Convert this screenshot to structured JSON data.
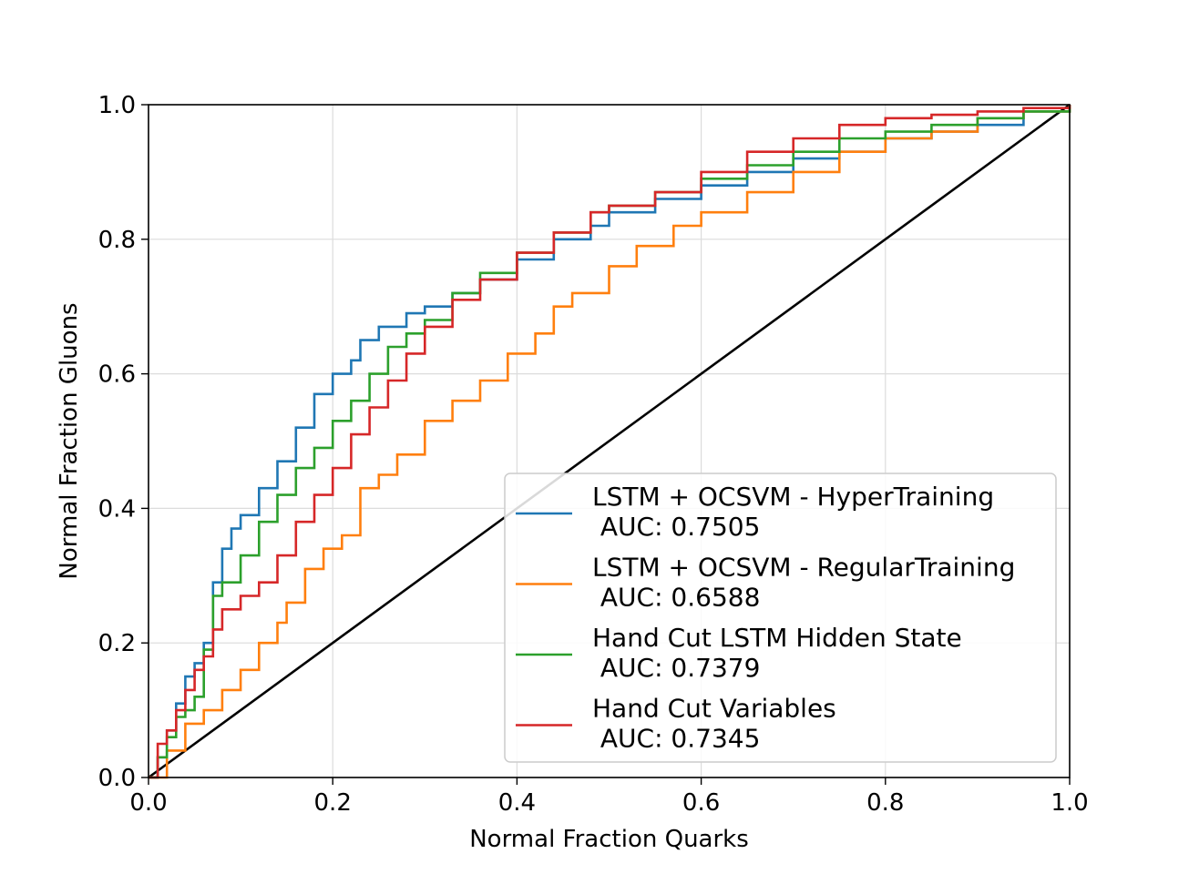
{
  "chart_data": {
    "type": "line",
    "xlabel": "Normal Fraction Quarks",
    "ylabel": "Normal Fraction Gluons",
    "xlim": [
      0.0,
      1.0
    ],
    "ylim": [
      0.0,
      1.0
    ],
    "xticks": [
      "0.0",
      "0.2",
      "0.4",
      "0.6",
      "0.8",
      "1.0"
    ],
    "yticks": [
      "0.0",
      "0.2",
      "0.4",
      "0.6",
      "0.8",
      "1.0"
    ],
    "grid": true,
    "legend_position": "lower right",
    "series": [
      {
        "name": "LSTM + OCSVM - HyperTraining",
        "auc_label": " AUC: 0.7505",
        "color": "#1f77b4",
        "x": [
          0.0,
          0.01,
          0.02,
          0.03,
          0.04,
          0.05,
          0.06,
          0.07,
          0.08,
          0.09,
          0.1,
          0.12,
          0.14,
          0.16,
          0.18,
          0.2,
          0.22,
          0.23,
          0.25,
          0.28,
          0.3,
          0.33,
          0.36,
          0.4,
          0.44,
          0.48,
          0.5,
          0.55,
          0.6,
          0.65,
          0.7,
          0.75,
          0.8,
          0.85,
          0.9,
          0.95,
          1.0
        ],
        "y": [
          0.0,
          0.03,
          0.07,
          0.11,
          0.15,
          0.17,
          0.2,
          0.29,
          0.34,
          0.37,
          0.39,
          0.43,
          0.47,
          0.52,
          0.57,
          0.6,
          0.62,
          0.65,
          0.67,
          0.69,
          0.7,
          0.72,
          0.74,
          0.77,
          0.8,
          0.82,
          0.84,
          0.86,
          0.88,
          0.9,
          0.92,
          0.93,
          0.95,
          0.96,
          0.97,
          0.99,
          1.0
        ]
      },
      {
        "name": "LSTM + OCSVM - RegularTraining",
        "auc_label": " AUC: 0.6588",
        "color": "#ff7f0e",
        "x": [
          0.0,
          0.02,
          0.04,
          0.06,
          0.08,
          0.1,
          0.12,
          0.14,
          0.15,
          0.17,
          0.19,
          0.21,
          0.23,
          0.25,
          0.27,
          0.3,
          0.33,
          0.36,
          0.39,
          0.42,
          0.44,
          0.46,
          0.5,
          0.53,
          0.57,
          0.6,
          0.65,
          0.7,
          0.75,
          0.8,
          0.85,
          0.9,
          0.95,
          1.0
        ],
        "y": [
          0.0,
          0.04,
          0.08,
          0.1,
          0.13,
          0.16,
          0.2,
          0.23,
          0.26,
          0.31,
          0.34,
          0.36,
          0.43,
          0.45,
          0.48,
          0.53,
          0.56,
          0.59,
          0.63,
          0.66,
          0.7,
          0.72,
          0.76,
          0.79,
          0.82,
          0.84,
          0.87,
          0.9,
          0.93,
          0.95,
          0.96,
          0.98,
          0.99,
          1.0
        ]
      },
      {
        "name": "Hand Cut LSTM Hidden State",
        "auc_label": " AUC: 0.7379",
        "color": "#2ca02c",
        "x": [
          0.0,
          0.01,
          0.02,
          0.03,
          0.04,
          0.05,
          0.06,
          0.07,
          0.08,
          0.1,
          0.12,
          0.14,
          0.16,
          0.18,
          0.2,
          0.22,
          0.24,
          0.26,
          0.28,
          0.3,
          0.33,
          0.36,
          0.4,
          0.44,
          0.48,
          0.5,
          0.55,
          0.6,
          0.65,
          0.7,
          0.75,
          0.8,
          0.85,
          0.9,
          0.95,
          1.0
        ],
        "y": [
          0.0,
          0.03,
          0.06,
          0.09,
          0.1,
          0.12,
          0.19,
          0.27,
          0.29,
          0.33,
          0.38,
          0.42,
          0.46,
          0.49,
          0.53,
          0.56,
          0.6,
          0.64,
          0.66,
          0.68,
          0.72,
          0.75,
          0.78,
          0.81,
          0.84,
          0.85,
          0.87,
          0.89,
          0.91,
          0.93,
          0.95,
          0.96,
          0.97,
          0.98,
          0.99,
          1.0
        ]
      },
      {
        "name": "Hand Cut Variables",
        "auc_label": " AUC: 0.7345",
        "color": "#d62728",
        "x": [
          0.0,
          0.01,
          0.02,
          0.03,
          0.04,
          0.05,
          0.06,
          0.07,
          0.08,
          0.1,
          0.12,
          0.14,
          0.16,
          0.18,
          0.2,
          0.22,
          0.24,
          0.26,
          0.28,
          0.3,
          0.33,
          0.36,
          0.4,
          0.44,
          0.48,
          0.5,
          0.55,
          0.6,
          0.65,
          0.7,
          0.75,
          0.8,
          0.85,
          0.9,
          0.95,
          1.0
        ],
        "y": [
          0.0,
          0.05,
          0.07,
          0.1,
          0.13,
          0.16,
          0.18,
          0.22,
          0.25,
          0.27,
          0.29,
          0.33,
          0.38,
          0.42,
          0.46,
          0.51,
          0.55,
          0.59,
          0.63,
          0.67,
          0.71,
          0.74,
          0.78,
          0.81,
          0.84,
          0.85,
          0.87,
          0.9,
          0.93,
          0.95,
          0.97,
          0.98,
          0.985,
          0.99,
          0.995,
          1.0
        ]
      }
    ],
    "reference_line": {
      "x": [
        0.0,
        1.0
      ],
      "y": [
        0.0,
        1.0
      ],
      "color": "#000000"
    }
  }
}
